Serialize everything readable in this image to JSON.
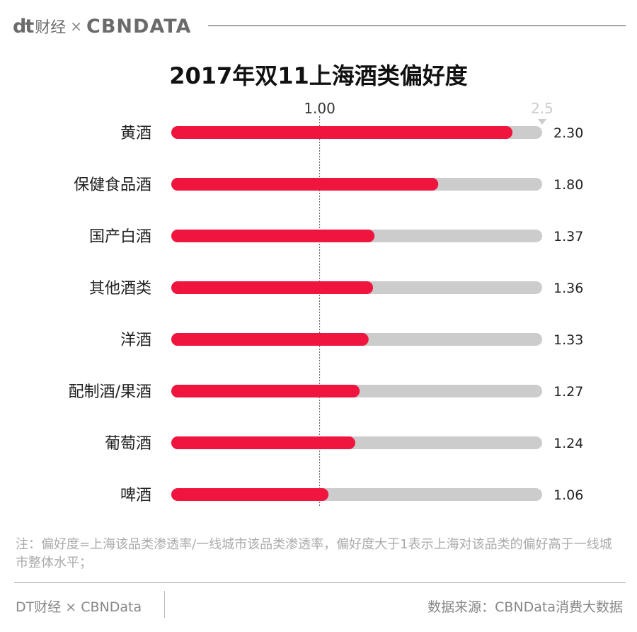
{
  "header": {
    "logo_dt": "dt",
    "logo_cn": "财经",
    "logo_x": "×",
    "logo_cbn": "CBNDATA"
  },
  "chart_data": {
    "type": "bar",
    "orientation": "horizontal",
    "title": "2017年双11上海酒类偏好度",
    "categories": [
      "黄酒",
      "保健食品酒",
      "国产白酒",
      "其他酒类",
      "洋酒",
      "配制酒/果酒",
      "葡萄酒",
      "啤酒"
    ],
    "values": [
      2.3,
      1.8,
      1.37,
      1.36,
      1.33,
      1.27,
      1.24,
      1.06
    ],
    "value_labels": [
      "2.30",
      "1.80",
      "1.37",
      "1.36",
      "1.33",
      "1.27",
      "1.24",
      "1.06"
    ],
    "xlim": [
      0,
      2.5
    ],
    "reference_line": {
      "value": 1.0,
      "label": "1.00"
    },
    "max_label": "2.5",
    "bar_color": "#f0153f",
    "track_color": "#cccccc"
  },
  "note": "注：偏好度=上海该品类渗透率/一线城市该品类渗透率，偏好度大于1表示上海对该品类的偏好高于一线城市整体水平；",
  "footer": {
    "left": "DT财经 × CBNData",
    "right": "数据来源：CBNData消费大数据"
  }
}
